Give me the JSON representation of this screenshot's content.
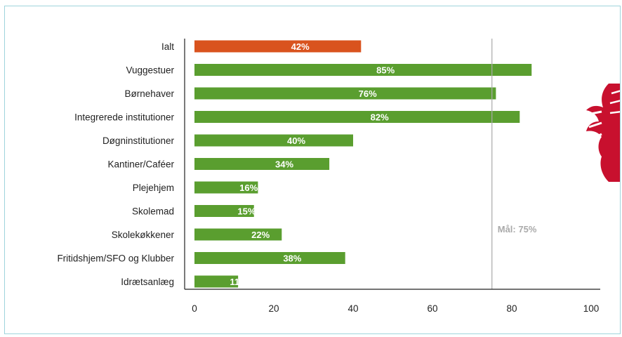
{
  "chart_data": {
    "type": "bar",
    "orientation": "horizontal",
    "categories": [
      "Ialt",
      "Vuggestuer",
      "Børnehaver",
      "Integrerede institutioner",
      "Døgninstitutioner",
      "Kantiner/Caféer",
      "Plejehjem",
      "Skolemad",
      "Skolekøkkener",
      "Fritidshjem/SFO og Klubber",
      "Idrætsanlæg"
    ],
    "values": [
      42,
      85,
      76,
      82,
      40,
      34,
      16,
      15,
      22,
      38,
      11
    ],
    "value_labels": [
      "42%",
      "85%",
      "76%",
      "82%",
      "40%",
      "34%",
      "16%",
      "15%",
      "22%",
      "38%",
      "11%"
    ],
    "xlim": [
      0,
      100
    ],
    "xticks": [
      0,
      20,
      40,
      60,
      80,
      100
    ],
    "xtick_labels": [
      "0",
      "20",
      "40",
      "60",
      "80",
      "100"
    ],
    "grid": false,
    "legend": "none",
    "reference_line": {
      "value": 75,
      "label": "Mål: 75%"
    },
    "colors": {
      "highlight": "#d9531e",
      "bar": "#5a9e2f",
      "reference_line": "#aaaaaa",
      "axis": "#222222"
    },
    "highlight_category": "Ialt"
  },
  "decoration": {
    "icon": "red-heraldic-emblem-icon",
    "color": "#c8102e"
  }
}
